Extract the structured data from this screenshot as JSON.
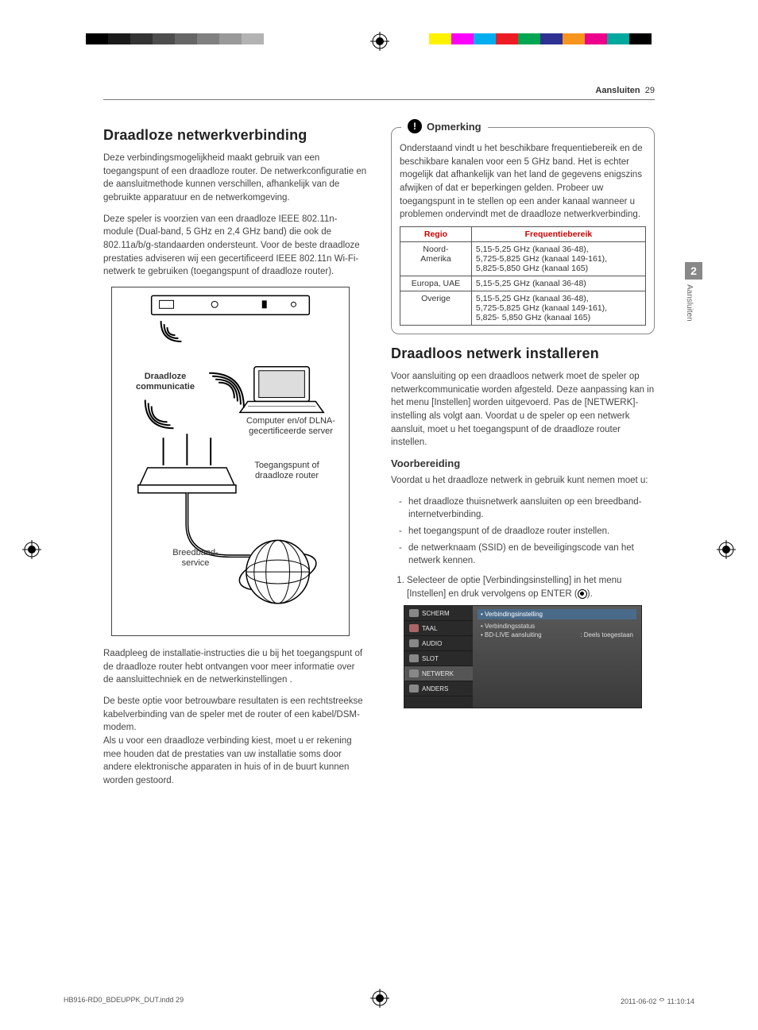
{
  "print_marks": {
    "left_colors": [
      "#000",
      "#1a1a1a",
      "#333",
      "#4d4d4d",
      "#666",
      "#808080",
      "#999",
      "#b3b3b3"
    ],
    "right_colors": [
      "#fff200",
      "#ff00ff",
      "#00aeef",
      "#ed1c24",
      "#00a651",
      "#2e3192",
      "#f7941d",
      "#ec008c",
      "#00a99d",
      "#000000"
    ]
  },
  "header": {
    "section": "Aansluiten",
    "page": "29"
  },
  "side_tab": {
    "number": "2",
    "label": "Aansluiten"
  },
  "col1": {
    "h2": "Draadloze netwerkverbinding",
    "p1": "Deze verbindingsmogelijkheid maakt gebruik van een toegangspunt of een draadloze router. De netwerkconfiguratie en de aansluitmethode kunnen verschillen, afhankelijk van de gebruikte apparatuur en de netwerkomgeving.",
    "p2": "Deze speler is voorzien van een draadloze IEEE 802.11n-module (Dual-band, 5 GHz en 2,4 GHz band) die ook de 802.11a/b/g-standaarden ondersteunt. Voor de beste draadloze prestaties adviseren wij een gecertificeerd IEEE 802.11n Wi-Fi-netwerk te gebruiken (toegangspunt of draadloze router).",
    "diagram": {
      "label_wireless": "Draadloze\ncommunicatie",
      "label_computer": "Computer en/of\nDLNA-gecertificeerde\nserver",
      "label_ap": "Toegangspunt of\ndraadloze router",
      "label_bb": "Breedband-\nservice"
    },
    "p3": "Raadpleeg de installatie-instructies die u bij het toegangspunt of de draadloze router hebt ontvangen voor meer informatie over de aansluittechniek en de netwerkinstellingen .",
    "p4": "De beste optie voor betrouwbare resultaten is een rechtstreekse kabelverbinding van de speler met de router of een kabel/DSM-modem.\nAls u voor een draadloze verbinding kiest, moet u er rekening mee houden dat de prestaties van uw installatie soms door andere elektronische apparaten in huis of in de buurt kunnen worden gestoord."
  },
  "col2": {
    "note_title": "Opmerking",
    "note_body": "Onderstaand vindt u het beschikbare frequentiebereik en de beschikbare kanalen voor een 5 GHz band. Het is echter mogelijk dat afhankelijk van het land de gegevens enigszins afwijken of dat er beperkingen gelden. Probeer uw toegangspunt in te stellen op een ander kanaal wanneer u problemen ondervindt met de draadloze netwerkverbinding.",
    "table": {
      "headers": [
        "Regio",
        "Frequentiebereik"
      ],
      "rows": [
        [
          "Noord-\nAmerika",
          "5,15-5,25 GHz (kanaal 36-48),\n5,725-5,825 GHz (kanaal 149-161),\n5,825-5,850 GHz (kanaal 165)"
        ],
        [
          "Europa, UAE",
          "5,15-5,25 GHz (kanaal 36-48)"
        ],
        [
          "Overige",
          "5,15-5,25 GHz (kanaal 36-48),\n5,725-5,825 GHz (kanaal 149-161),\n5,825- 5,850 GHz (kanaal 165)"
        ]
      ]
    },
    "h2b": "Draadloos netwerk installeren",
    "p5": "Voor aansluiting op een draadloos netwerk moet de speler op netwerkcommunicatie worden afgesteld. Deze aanpassing kan in het menu [Instellen] worden uitgevoerd. Pas de [NETWERK]-instelling als volgt aan. Voordat u de speler op een netwerk aansluit, moet u het toegangspunt of de draadloze router instellen.",
    "h3": "Voorbereiding",
    "p6": "Voordat u het draadloze netwerk in gebruik kunt nemen moet u:",
    "bullets": [
      "het draadloze thuisnetwerk aansluiten op een breedband-internetverbinding.",
      "het toegangspunt of de draadloze router instellen.",
      "de netwerknaam (SSID) en de beveiligingscode van het netwerk kennen."
    ],
    "step1": "Selecteer de optie [Verbindingsinstelling] in het menu [Instellen] en druk vervolgens op ENTER (",
    "step1_end": ").",
    "settings": {
      "menu": [
        "SCHERM",
        "TAAL",
        "AUDIO",
        "SLOT",
        "NETWERK",
        "ANDERS"
      ],
      "right_sel": "• Verbindingsinstelling",
      "right_rows": [
        [
          "• Verbindingsstatus",
          ""
        ],
        [
          "• BD-LIVE aansluiting",
          ": Deels toegestaan"
        ]
      ]
    }
  },
  "footer": {
    "left": "HB916-RD0_BDEUPPK_DUT.indd   29",
    "right": "2011-06-02   ᄋ 11:10:14"
  }
}
